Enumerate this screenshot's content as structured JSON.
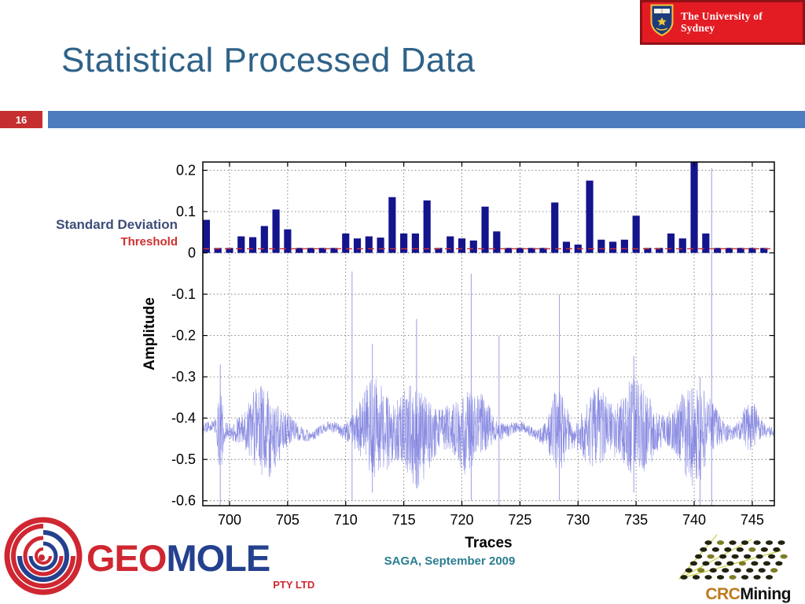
{
  "slide": {
    "title": "Statistical Processed Data",
    "page_number": "16",
    "footer_caption": "SAGA, September 2009"
  },
  "header": {
    "university_banner": {
      "text": "The University of Sydney",
      "bg_color": "#e31b23"
    }
  },
  "legend": {
    "std_dev": "Standard Deviation",
    "threshold": "Threshold",
    "std_dev_color": "#3e4d79",
    "threshold_color": "#d03030"
  },
  "logos": {
    "geomole": {
      "geo": "GEO",
      "mole": "MOLE",
      "suffix": "PTY LTD"
    },
    "crcmining": {
      "crc": "CRC",
      "mining": "Mining"
    }
  },
  "chart_data": {
    "type": "bar",
    "title": "",
    "xlabel": "Traces",
    "ylabel": "Amplitude",
    "xlim": [
      697.7,
      746.9
    ],
    "ylim": [
      -0.612,
      0.22
    ],
    "xticks": [
      700,
      705,
      710,
      715,
      720,
      725,
      730,
      735,
      740,
      745
    ],
    "xtick_labels": [
      "700",
      "705",
      "710",
      "715",
      "720",
      "725",
      "730",
      "735",
      "740",
      "745"
    ],
    "yticks": [
      0.2,
      0.1,
      0,
      -0.1,
      -0.2,
      -0.3,
      -0.4,
      -0.5,
      -0.6
    ],
    "ytick_labels": [
      "0.2",
      "0.1",
      "0",
      "-0.1",
      "-0.2",
      "-0.3",
      "-0.4",
      "-0.5",
      "-0.6"
    ],
    "grid": "dotted",
    "legend_position": "outside-left",
    "bar_color": "#14148c",
    "threshold": {
      "name": "Threshold",
      "value": 0.01,
      "color": "#d03030",
      "style": "dashed"
    },
    "bars": {
      "name": "Standard Deviation",
      "x": [
        698,
        699,
        700,
        701,
        702,
        703,
        704,
        705,
        706,
        707,
        708,
        709,
        710,
        711,
        712,
        713,
        714,
        715,
        716,
        717,
        718,
        719,
        720,
        721,
        722,
        723,
        724,
        725,
        726,
        727,
        728,
        729,
        730,
        731,
        732,
        733,
        734,
        735,
        736,
        737,
        738,
        739,
        740,
        741,
        742,
        743,
        744,
        745,
        746
      ],
      "values": [
        0.08,
        0.012,
        0.012,
        0.04,
        0.038,
        0.065,
        0.105,
        0.057,
        0.012,
        0.012,
        0.012,
        0.012,
        0.047,
        0.035,
        0.04,
        0.037,
        0.135,
        0.047,
        0.047,
        0.127,
        0.012,
        0.04,
        0.035,
        0.03,
        0.112,
        0.052,
        0.012,
        0.012,
        0.012,
        0.012,
        0.122,
        0.027,
        0.02,
        0.175,
        0.032,
        0.027,
        0.032,
        0.09,
        0.012,
        0.012,
        0.047,
        0.035,
        0.22,
        0.047,
        0.012,
        0.012,
        0.012,
        0.012,
        0.012
      ]
    },
    "trace": {
      "name": "Processed seismic trace",
      "color": "#7678dd",
      "baseline": -0.43,
      "noise_amp": 0.013,
      "bursts": [
        [
          699.2,
          0.3,
          0.1
        ],
        [
          703.0,
          1.8,
          0.1
        ],
        [
          712.5,
          1.6,
          0.11
        ],
        [
          716.0,
          1.5,
          0.12
        ],
        [
          720.5,
          2.0,
          0.09
        ],
        [
          728.3,
          0.9,
          0.09
        ],
        [
          731.5,
          1.3,
          0.09
        ],
        [
          735.0,
          1.7,
          0.11
        ],
        [
          740.0,
          1.8,
          0.11
        ],
        [
          744.8,
          0.8,
          0.05
        ]
      ],
      "spikes": [
        [
          699.2,
          -0.27,
          -0.625
        ],
        [
          710.55,
          -0.045,
          -0.6
        ],
        [
          712.3,
          -0.22,
          -0.58
        ],
        [
          716.1,
          -0.16,
          -0.57
        ],
        [
          720.8,
          -0.05,
          -0.6
        ],
        [
          723.2,
          -0.2,
          -0.62
        ],
        [
          728.4,
          -0.1,
          -0.6
        ],
        [
          734.8,
          -0.25,
          -0.58
        ],
        [
          740.5,
          -0.3,
          -0.62
        ],
        [
          741.5,
          0.205,
          -0.625
        ]
      ]
    }
  }
}
